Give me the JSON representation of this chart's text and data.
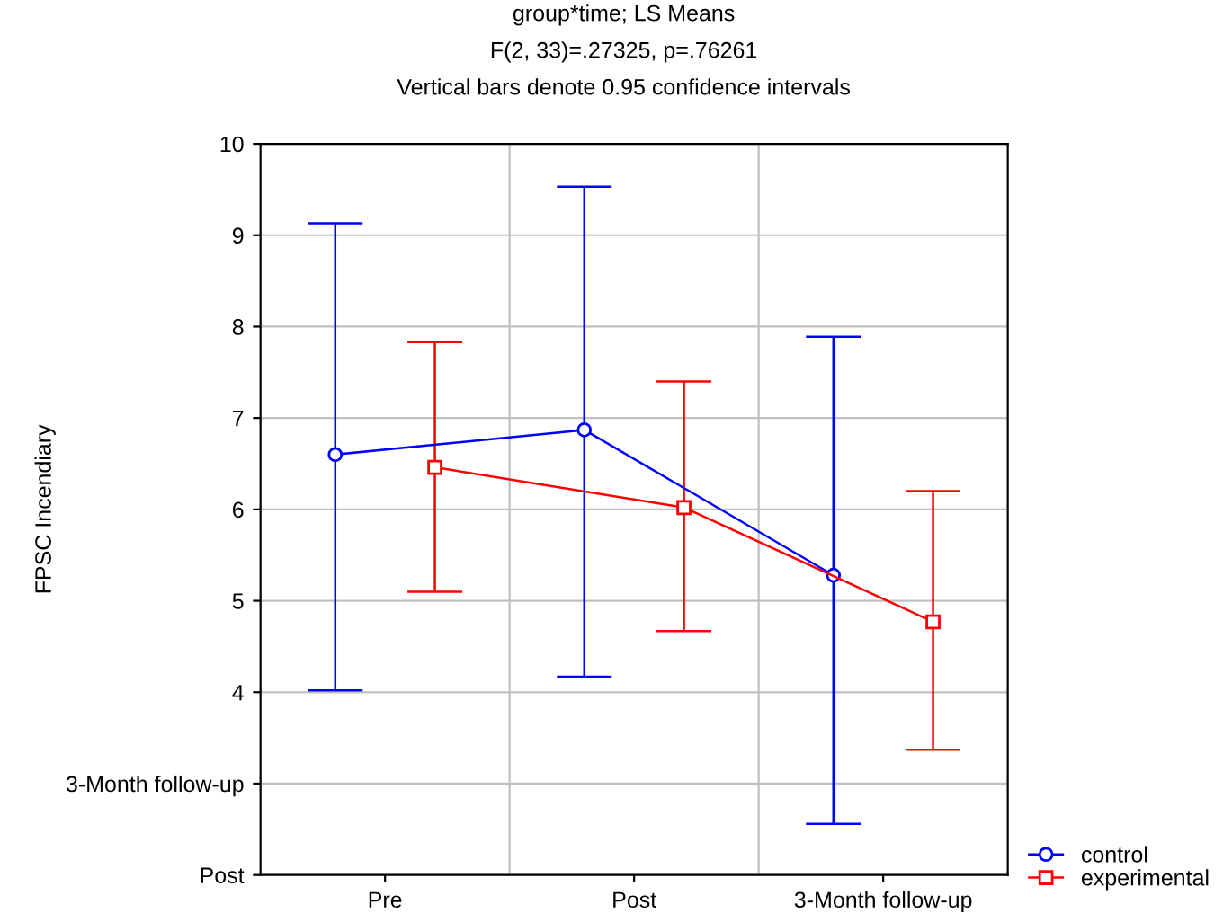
{
  "chart_data": {
    "type": "line",
    "title": "group*time; LS Means",
    "subtitle": "F(2, 33)=.27325, p=.76261",
    "annotations": [
      "Vertical bars denote 0.95 confidence intervals"
    ],
    "ylabel": "FPSC Incendiary",
    "categories": [
      "Pre",
      "Post",
      "3-Month follow-up"
    ],
    "series": [
      {
        "name": "control",
        "color": "#0000ff",
        "marker": "circle",
        "values": [
          6.6,
          6.87,
          5.28
        ],
        "errors": [
          [
            4.02,
            9.13
          ],
          [
            4.17,
            9.53
          ],
          [
            2.56,
            7.89
          ]
        ]
      },
      {
        "name": "experimental",
        "color": "#ff0000",
        "marker": "square",
        "values": [
          6.46,
          6.02,
          4.77
        ],
        "errors": [
          [
            5.1,
            7.83
          ],
          [
            4.67,
            7.4
          ],
          [
            3.37,
            6.2
          ]
        ]
      }
    ],
    "ylim": [
      2,
      10
    ],
    "yticks": [
      {
        "value": 2,
        "label": "Post"
      },
      {
        "value": 3,
        "label": "3-Month follow-up"
      },
      4,
      5,
      6,
      7,
      8,
      9,
      10
    ],
    "grid": true,
    "legend": "bottom right"
  }
}
